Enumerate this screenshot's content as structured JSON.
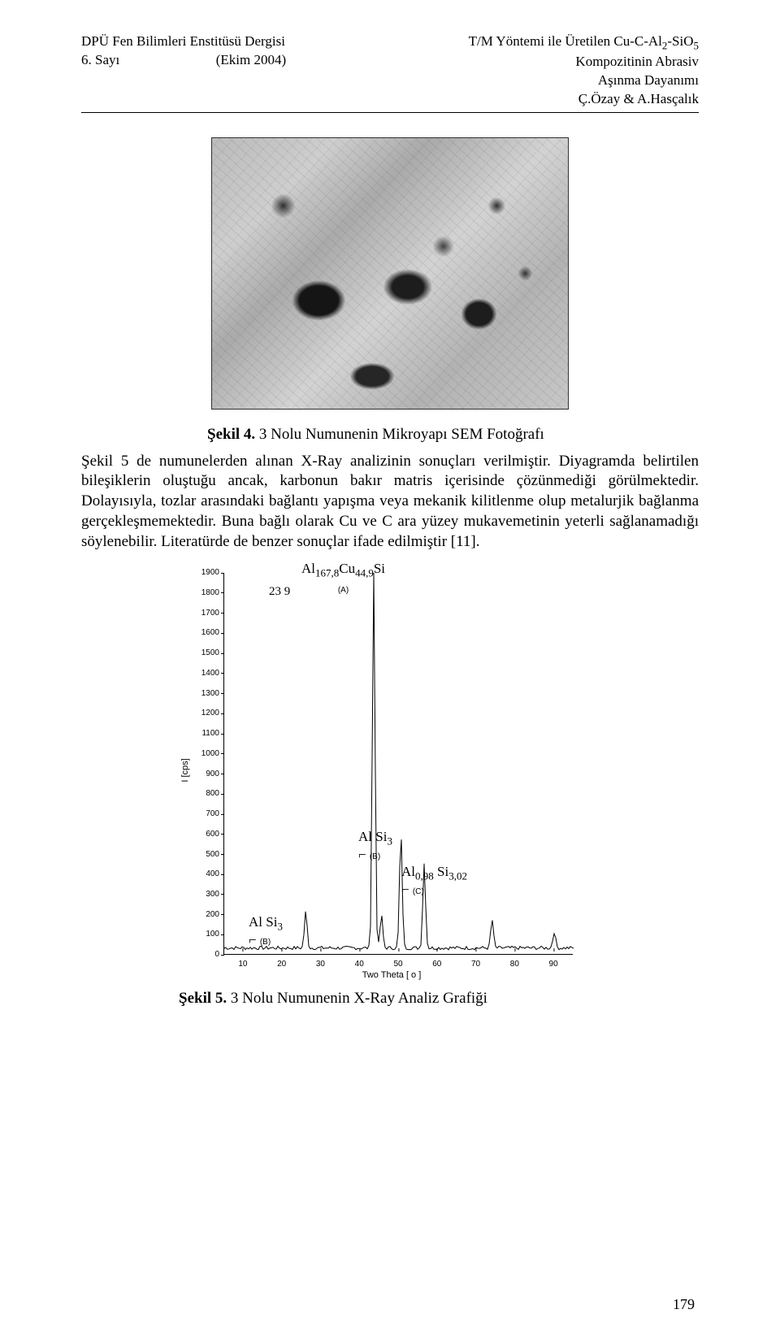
{
  "header": {
    "left_line1": "DPÜ Fen Bilimleri Enstitüsü Dergisi",
    "left_line2_a": "6. Sayı",
    "left_line2_b": "(Ekim 2004)",
    "right_line1_pre": "T/M Yöntemi ile Üretilen Cu-C-Al",
    "right_line1_sub1": "2",
    "right_line1_mid": "-SiO",
    "right_line1_sub2": "5",
    "right_line2": "Kompozitinin Abrasiv",
    "right_line3": "Aşınma Dayanımı",
    "right_line4": "Ç.Özay & A.Hasçalık"
  },
  "figure4": {
    "label": "Şekil 4.",
    "text": "3 Nolu  Numunenin Mikroyapı SEM Fotoğrafı"
  },
  "paragraph": "Şekil 5 de numunelerden alınan X-Ray analizinin sonuçları verilmiştir. Diyagramda belirtilen bileşiklerin oluştuğu ancak, karbonun bakır matris içerisinde çözünmediği görülmektedir. Dolayısıyla, tozlar arasındaki bağlantı yapışma veya mekanik kilitlenme olup metalurjik bağlanma gerçekleşmemektedir. Buna bağlı olarak Cu ve C ara yüzey mukavemetinin yeterli sağlanamadığı söylenebilir. Literatürde de benzer sonuçlar ifade edilmiştir [11].",
  "chart": {
    "type": "xrd-line",
    "xlabel": "Two Theta [ o ]",
    "ylabel": "I [cps]",
    "xlim": [
      5,
      95
    ],
    "ylim": [
      0,
      1900
    ],
    "ytick_step": 100,
    "xtick_step": 10,
    "background_color": "#ffffff",
    "line_color": "#000000",
    "font_family_axes": "Arial",
    "axis_fontsize": 10,
    "label_fontsize": 11,
    "peak_label_fontsize": 17,
    "peaks": [
      {
        "two_theta": 26,
        "intensity": 180,
        "phase": "Al Si",
        "phase_sub": "3",
        "marker": "(B)"
      },
      {
        "two_theta": 43.5,
        "intensity": 1870,
        "phase": "Al",
        "phase_sub1": "167,8",
        "phase_mid": "Cu",
        "phase_sub2": "44,9",
        "phase_end": "Si",
        "extra": "23 9",
        "marker": "(A)"
      },
      {
        "two_theta": 45.5,
        "intensity": 160
      },
      {
        "two_theta": 50.5,
        "intensity": 570,
        "phase": "Al Si",
        "phase_sub": "3",
        "marker": "(B)"
      },
      {
        "two_theta": 56.5,
        "intensity": 420,
        "phase": "Al",
        "phase_sub1": "0,98",
        "phase_mid": " Si",
        "phase_sub2": "3,02",
        "marker": "(C)"
      },
      {
        "two_theta": 74,
        "intensity": 140
      },
      {
        "two_theta": 90,
        "intensity": 80
      }
    ]
  },
  "figure5": {
    "label": "Şekil 5.",
    "text": "3 Nolu  Numunenin X-Ray Analiz Grafiği"
  },
  "page_number": "179"
}
